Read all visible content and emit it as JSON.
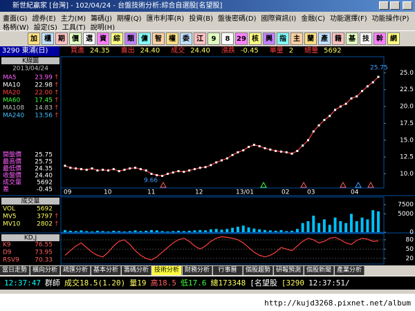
{
  "window": {
    "title": "新世紀贏家 [台灣] - 102/04/24 - 台盤技術分析:綜合自選股[名望股]"
  },
  "menu": [
    [
      "畫面(G)",
      "證券(E)",
      "主力(M)",
      "籌碼(J)",
      "期權(Q)",
      "匯市利率(R)",
      "投資(B)",
      "盤後密碼(D)",
      "國際資訊(I)",
      "金融(C)",
      "功能選擇(F)",
      "功能操作(P)"
    ],
    [
      "格柄(W)",
      "設定(S)",
      "工具(T)",
      "說明(H)"
    ]
  ],
  "toolbar": [
    "加",
    "櫃",
    "期",
    "價",
    "選",
    "資",
    "綜",
    "類",
    "傭",
    "智",
    "權",
    "委",
    "江",
    "9",
    "8",
    "29",
    "核",
    "興",
    "指",
    "主",
    "蘭",
    "產",
    "籍",
    "基",
    "技",
    "幹",
    "網"
  ],
  "quote": {
    "symbol": "3290 東浦(日)",
    "fields": [
      {
        "label": "買進",
        "value": "24.35"
      },
      {
        "label": "賣出",
        "value": "24.40"
      },
      {
        "label": "成交",
        "value": "24.40"
      },
      {
        "label": "漲跌",
        "value": "-0.45"
      },
      {
        "label": "單量",
        "value": "2"
      },
      {
        "label": "總量",
        "value": "5692"
      }
    ]
  },
  "left_panel": {
    "title": "K線圖",
    "date": "2013/04/24",
    "ma": [
      {
        "name": "MA5",
        "value": "23.99",
        "trend": "↑",
        "color": "#ff60ff"
      },
      {
        "name": "MA10",
        "value": "22.98",
        "trend": "↑",
        "color": "#ffffff"
      },
      {
        "name": "MA20",
        "value": "22.00",
        "trend": "↑",
        "color": "#ff4040"
      },
      {
        "name": "MA60",
        "value": "17.45",
        "trend": "↑",
        "color": "#40ff40"
      },
      {
        "name": "MA108",
        "value": "14.83",
        "trend": "↑",
        "color": "#c0c0c0"
      },
      {
        "name": "MA240",
        "value": "13.56",
        "trend": "↑",
        "color": "#40c0ff"
      }
    ],
    "ohlc": [
      {
        "name": "開盤價",
        "value": "25.75"
      },
      {
        "name": "最高價",
        "value": "25.75"
      },
      {
        "name": "最低價",
        "value": "24.35"
      },
      {
        "name": "收盤價",
        "value": "24.40"
      },
      {
        "name": "成交量",
        "value": "5692"
      },
      {
        "name": "差",
        "value": "-0.45"
      }
    ]
  },
  "volume_panel": {
    "title": "成交量",
    "items": [
      {
        "name": "VOL",
        "value": "5692",
        "trend": ""
      },
      {
        "name": "MV5",
        "value": "3797",
        "trend": "↑"
      },
      {
        "name": "MV10",
        "value": "2802",
        "trend": "↑"
      }
    ]
  },
  "kd_panel": {
    "title": "KD,J",
    "items": [
      {
        "name": "K9",
        "value": "76.55",
        "trend": ""
      },
      {
        "name": "D9",
        "value": "73.95",
        "trend": ""
      },
      {
        "name": "RSV9",
        "value": "70.33",
        "trend": ""
      }
    ]
  },
  "chart_data": [
    {
      "type": "line",
      "name": "收盤價",
      "color": "#ff4040",
      "ylim": [
        7.9,
        27.4
      ],
      "yticks": [
        {
          "value": 25,
          "label": "25.0"
        },
        22.5,
        {
          "value": 20,
          "label": "20.0"
        },
        17.5,
        {
          "value": 15,
          "label": "15.0"
        },
        12.5,
        {
          "value": 10,
          "label": "10.0"
        }
      ],
      "xtick_labels": [
        "09",
        "10",
        "11",
        "12",
        "13/01",
        "02",
        "03",
        "04"
      ],
      "annotations": [
        {
          "value": 25.75,
          "label": "25.75"
        },
        {
          "value": 9.66,
          "label": "9.66"
        }
      ],
      "values": [
        11.2,
        10.9,
        10.8,
        10.7,
        10.6,
        10.8,
        10.5,
        10.6,
        10.5,
        10.7,
        10.4,
        10.6,
        10.8,
        10.9,
        10.7,
        10.5,
        10.0,
        9.8,
        9.7,
        10.0,
        10.2,
        10.4,
        10.3,
        10.5,
        10.7,
        10.9,
        11.0,
        11.3,
        11.7,
        12.0,
        12.3,
        12.8,
        13.2,
        13.5,
        14.0,
        14.3,
        14.1,
        13.8,
        13.6,
        13.4,
        13.3,
        13.2,
        13.0,
        13.4,
        14.2,
        15.0,
        16.3,
        17.2,
        18.0,
        18.6,
        19.5,
        20.0,
        20.4,
        21.2,
        21.5,
        22.3,
        23.0,
        23.6,
        24.4
      ]
    },
    {
      "type": "bar",
      "name": "成交量",
      "color": "#00c0ff",
      "ylim": [
        0,
        9600
      ],
      "yticks": [
        7500,
        5000,
        0
      ],
      "values": [
        600,
        400,
        300,
        500,
        300,
        200,
        400,
        300,
        200,
        400,
        300,
        200,
        300,
        500,
        300,
        400,
        600,
        500,
        300,
        200,
        300,
        400,
        300,
        400,
        500,
        600,
        500,
        800,
        900,
        700,
        900,
        1200,
        1500,
        1800,
        1300,
        1000,
        800,
        600,
        500,
        400,
        600,
        300,
        400,
        900,
        2500,
        3000,
        4500,
        2500,
        3500,
        2000,
        4000,
        3000,
        2500,
        5000,
        3000,
        4000,
        3500,
        6000,
        5692
      ]
    },
    {
      "type": "line",
      "name": "K9",
      "color": "#ff4040",
      "ylim": [
        2,
        100
      ],
      "yticks": [
        80,
        50,
        20
      ],
      "values": [
        30,
        45,
        60,
        70,
        55,
        40,
        30,
        25,
        40,
        60,
        75,
        80,
        65,
        45,
        30,
        20,
        15,
        25,
        40,
        55,
        70,
        80,
        85,
        75,
        60,
        50,
        60,
        75,
        85,
        90,
        88,
        85,
        80,
        70,
        55,
        40,
        30,
        25,
        30,
        40,
        55,
        50,
        45,
        60,
        75,
        85,
        80,
        70,
        75,
        85,
        88,
        80,
        70,
        65,
        78,
        85,
        82,
        75,
        76.55
      ]
    }
  ],
  "tabs": [
    "當日走勢",
    "橫向分析",
    "疏匯分析",
    "基本分析",
    "籌碼分析",
    "技術分析",
    "財務分析",
    "行事曆",
    "個股趨勢",
    "研報預測",
    "個股新聞",
    "產業分析"
  ],
  "status": [
    "12:37:47",
    "群師",
    "成交18.5(1.20)",
    "量19",
    "高18.5",
    "低17.6",
    "總173348",
    "[名望股",
    "[3290",
    "12:37:51/"
  ],
  "footer": {
    "url": "http://kujd3268.pixnet.net/album"
  }
}
